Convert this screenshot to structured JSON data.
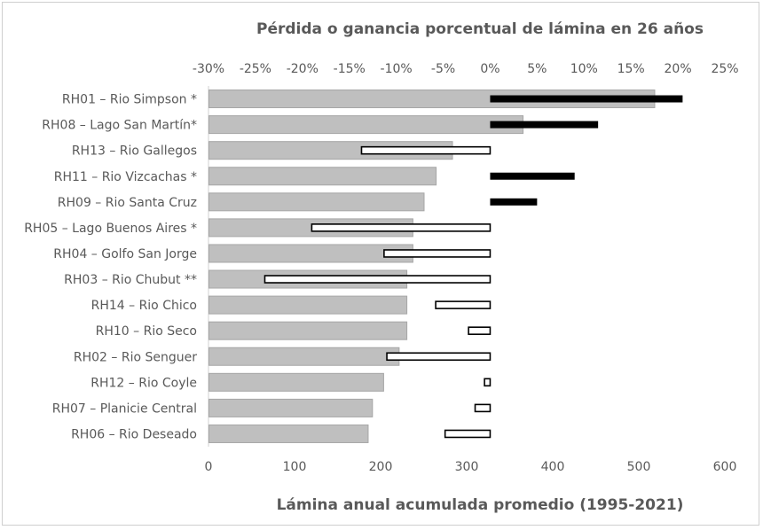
{
  "chart_data": {
    "type": "bar",
    "orientation": "horizontal",
    "title": "Pérdida o ganancia porcentual de lámina en 26 años",
    "xlabel": "Lámina anual acumulada promedio (1995-2021)",
    "xlim": [
      0,
      600
    ],
    "x_ticks": [
      "0",
      "100",
      "200",
      "300",
      "400",
      "500",
      "600"
    ],
    "x2lim": [
      -30,
      25
    ],
    "x2_ticks": [
      "-30%",
      "-25%",
      "-20%",
      "-15%",
      "-10%",
      "-5%",
      "0%",
      "5%",
      "10%",
      "15%",
      "20%",
      "25%"
    ],
    "categories": [
      "RH01 – Rio Simpson *",
      "RH08 – Lago San Martín*",
      "RH13 – Rio Gallegos",
      "RH11 – Rio Vizcachas *",
      "RH09 – Rio Santa Cruz",
      "RH05 – Lago Buenos Aires *",
      "RH04 – Golfo San Jorge",
      "RH03 – Rio Chubut **",
      "RH14 – Rio Chico",
      "RH10 – Rio Seco",
      "RH02 – Rio Senguer",
      "RH12 – Rio Coyle",
      "RH07 – Planicie Central",
      "RH06 – Rio Deseado"
    ],
    "series": [
      {
        "name": "Lámina anual acumulada promedio",
        "axis": "bottom",
        "color": "#bfbfbf",
        "values": [
          518,
          365,
          283,
          264,
          250,
          237,
          237,
          230,
          230,
          230,
          221,
          203,
          190,
          185
        ]
      },
      {
        "name": "Pérdida o ganancia porcentual",
        "axis": "top",
        "values": [
          20.5,
          11.5,
          -13.7,
          9,
          5,
          -19,
          -11.3,
          -24,
          -5.8,
          -2.3,
          -11,
          -0.6,
          -1.6,
          -4.8
        ]
      }
    ],
    "positive_color": "#000000",
    "negative_fill": "#ffffff",
    "negative_stroke": "#000000"
  }
}
